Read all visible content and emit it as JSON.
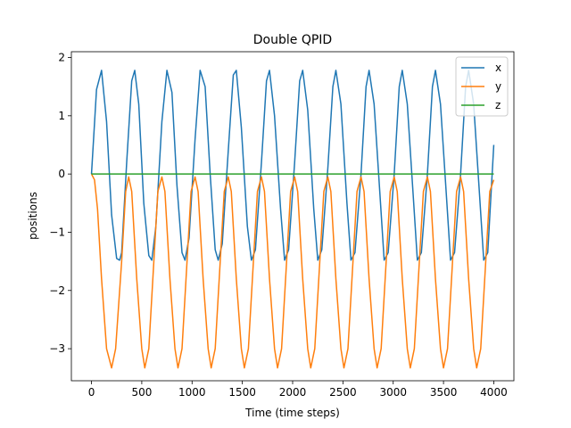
{
  "chart_data": {
    "type": "line",
    "title": "Double QPID",
    "xlabel": "Time (time steps)",
    "ylabel": "positions",
    "xlim": [
      -200,
      4200
    ],
    "ylim": [
      -3.55,
      2.1
    ],
    "x_ticks": [
      0,
      500,
      1000,
      1500,
      2000,
      2500,
      3000,
      3500,
      4000
    ],
    "x_tick_labels": [
      "0",
      "500",
      "1000",
      "1500",
      "2000",
      "2500",
      "3000",
      "3500",
      "4000"
    ],
    "y_ticks": [
      -3,
      -2,
      -1,
      0,
      1,
      2
    ],
    "y_tick_labels": [
      "−3",
      "−2",
      "−1",
      "0",
      "1",
      "2"
    ],
    "grid": false,
    "legend_position": "top-right",
    "series": [
      {
        "name": "x",
        "color": "#1f77b4",
        "points": [
          [
            0,
            0.0
          ],
          [
            50,
            1.45
          ],
          [
            100,
            1.78
          ],
          [
            150,
            0.9
          ],
          [
            200,
            -0.7
          ],
          [
            250,
            -1.45
          ],
          [
            280,
            -1.48
          ],
          [
            300,
            -1.35
          ],
          [
            350,
            0.2
          ],
          [
            400,
            1.6
          ],
          [
            430,
            1.78
          ],
          [
            470,
            1.2
          ],
          [
            520,
            -0.5
          ],
          [
            570,
            -1.4
          ],
          [
            600,
            -1.48
          ],
          [
            640,
            -0.9
          ],
          [
            700,
            0.9
          ],
          [
            750,
            1.78
          ],
          [
            800,
            1.4
          ],
          [
            850,
            -0.2
          ],
          [
            900,
            -1.35
          ],
          [
            930,
            -1.48
          ],
          [
            970,
            -1.1
          ],
          [
            1030,
            0.6
          ],
          [
            1080,
            1.78
          ],
          [
            1130,
            1.5
          ],
          [
            1180,
            0.0
          ],
          [
            1230,
            -1.3
          ],
          [
            1260,
            -1.48
          ],
          [
            1300,
            -1.2
          ],
          [
            1360,
            0.4
          ],
          [
            1410,
            1.7
          ],
          [
            1440,
            1.78
          ],
          [
            1490,
            0.8
          ],
          [
            1550,
            -0.9
          ],
          [
            1590,
            -1.48
          ],
          [
            1630,
            -1.3
          ],
          [
            1690,
            0.2
          ],
          [
            1740,
            1.6
          ],
          [
            1770,
            1.78
          ],
          [
            1820,
            1.0
          ],
          [
            1880,
            -0.6
          ],
          [
            1920,
            -1.48
          ],
          [
            1960,
            -1.3
          ],
          [
            2020,
            0.2
          ],
          [
            2070,
            1.6
          ],
          [
            2100,
            1.78
          ],
          [
            2150,
            1.1
          ],
          [
            2210,
            -0.6
          ],
          [
            2250,
            -1.48
          ],
          [
            2290,
            -1.3
          ],
          [
            2350,
            0.1
          ],
          [
            2400,
            1.5
          ],
          [
            2430,
            1.78
          ],
          [
            2480,
            1.2
          ],
          [
            2540,
            -0.5
          ],
          [
            2580,
            -1.48
          ],
          [
            2620,
            -1.35
          ],
          [
            2680,
            0.0
          ],
          [
            2730,
            1.5
          ],
          [
            2760,
            1.78
          ],
          [
            2810,
            1.2
          ],
          [
            2870,
            -0.4
          ],
          [
            2910,
            -1.48
          ],
          [
            2950,
            -1.35
          ],
          [
            3010,
            0.0
          ],
          [
            3060,
            1.5
          ],
          [
            3090,
            1.78
          ],
          [
            3140,
            1.2
          ],
          [
            3200,
            -0.4
          ],
          [
            3240,
            -1.48
          ],
          [
            3280,
            -1.35
          ],
          [
            3340,
            0.0
          ],
          [
            3390,
            1.5
          ],
          [
            3420,
            1.78
          ],
          [
            3470,
            1.2
          ],
          [
            3530,
            -0.4
          ],
          [
            3570,
            -1.48
          ],
          [
            3610,
            -1.35
          ],
          [
            3670,
            0.0
          ],
          [
            3720,
            1.5
          ],
          [
            3750,
            1.78
          ],
          [
            3800,
            1.2
          ],
          [
            3860,
            -0.4
          ],
          [
            3900,
            -1.48
          ],
          [
            3940,
            -1.35
          ],
          [
            4000,
            0.5
          ]
        ]
      },
      {
        "name": "y",
        "color": "#ff7f0e",
        "points": [
          [
            0,
            0.0
          ],
          [
            30,
            -0.1
          ],
          [
            60,
            -0.6
          ],
          [
            100,
            -1.8
          ],
          [
            150,
            -3.0
          ],
          [
            200,
            -3.33
          ],
          [
            240,
            -3.0
          ],
          [
            300,
            -1.5
          ],
          [
            340,
            -0.3
          ],
          [
            370,
            -0.05
          ],
          [
            400,
            -0.3
          ],
          [
            450,
            -1.8
          ],
          [
            500,
            -3.0
          ],
          [
            530,
            -3.33
          ],
          [
            570,
            -3.0
          ],
          [
            620,
            -1.5
          ],
          [
            660,
            -0.3
          ],
          [
            700,
            -0.05
          ],
          [
            730,
            -0.3
          ],
          [
            780,
            -1.8
          ],
          [
            830,
            -3.0
          ],
          [
            860,
            -3.33
          ],
          [
            900,
            -3.0
          ],
          [
            950,
            -1.5
          ],
          [
            990,
            -0.3
          ],
          [
            1030,
            -0.05
          ],
          [
            1060,
            -0.3
          ],
          [
            1110,
            -1.8
          ],
          [
            1160,
            -3.0
          ],
          [
            1190,
            -3.33
          ],
          [
            1230,
            -3.0
          ],
          [
            1280,
            -1.5
          ],
          [
            1320,
            -0.3
          ],
          [
            1360,
            -0.05
          ],
          [
            1390,
            -0.3
          ],
          [
            1440,
            -1.8
          ],
          [
            1490,
            -3.0
          ],
          [
            1520,
            -3.33
          ],
          [
            1560,
            -3.0
          ],
          [
            1610,
            -1.5
          ],
          [
            1650,
            -0.3
          ],
          [
            1690,
            -0.05
          ],
          [
            1720,
            -0.3
          ],
          [
            1770,
            -1.8
          ],
          [
            1820,
            -3.0
          ],
          [
            1850,
            -3.33
          ],
          [
            1890,
            -3.0
          ],
          [
            1940,
            -1.5
          ],
          [
            1980,
            -0.3
          ],
          [
            2020,
            -0.05
          ],
          [
            2050,
            -0.3
          ],
          [
            2100,
            -1.8
          ],
          [
            2150,
            -3.0
          ],
          [
            2180,
            -3.33
          ],
          [
            2220,
            -3.0
          ],
          [
            2270,
            -1.5
          ],
          [
            2310,
            -0.3
          ],
          [
            2350,
            -0.05
          ],
          [
            2380,
            -0.3
          ],
          [
            2430,
            -1.8
          ],
          [
            2480,
            -3.0
          ],
          [
            2510,
            -3.33
          ],
          [
            2550,
            -3.0
          ],
          [
            2600,
            -1.5
          ],
          [
            2640,
            -0.3
          ],
          [
            2680,
            -0.05
          ],
          [
            2710,
            -0.3
          ],
          [
            2760,
            -1.8
          ],
          [
            2810,
            -3.0
          ],
          [
            2840,
            -3.33
          ],
          [
            2880,
            -3.0
          ],
          [
            2930,
            -1.5
          ],
          [
            2970,
            -0.3
          ],
          [
            3010,
            -0.05
          ],
          [
            3040,
            -0.3
          ],
          [
            3090,
            -1.8
          ],
          [
            3140,
            -3.0
          ],
          [
            3170,
            -3.33
          ],
          [
            3210,
            -3.0
          ],
          [
            3260,
            -1.5
          ],
          [
            3300,
            -0.3
          ],
          [
            3340,
            -0.05
          ],
          [
            3370,
            -0.3
          ],
          [
            3420,
            -1.8
          ],
          [
            3470,
            -3.0
          ],
          [
            3500,
            -3.33
          ],
          [
            3540,
            -3.0
          ],
          [
            3590,
            -1.5
          ],
          [
            3630,
            -0.3
          ],
          [
            3670,
            -0.05
          ],
          [
            3700,
            -0.3
          ],
          [
            3750,
            -1.8
          ],
          [
            3800,
            -3.0
          ],
          [
            3830,
            -3.33
          ],
          [
            3870,
            -3.0
          ],
          [
            3920,
            -1.5
          ],
          [
            3960,
            -0.3
          ],
          [
            4000,
            -0.1
          ]
        ]
      },
      {
        "name": "z",
        "color": "#2ca02c",
        "points": [
          [
            0,
            0.0
          ],
          [
            4000,
            0.0
          ]
        ]
      }
    ]
  }
}
